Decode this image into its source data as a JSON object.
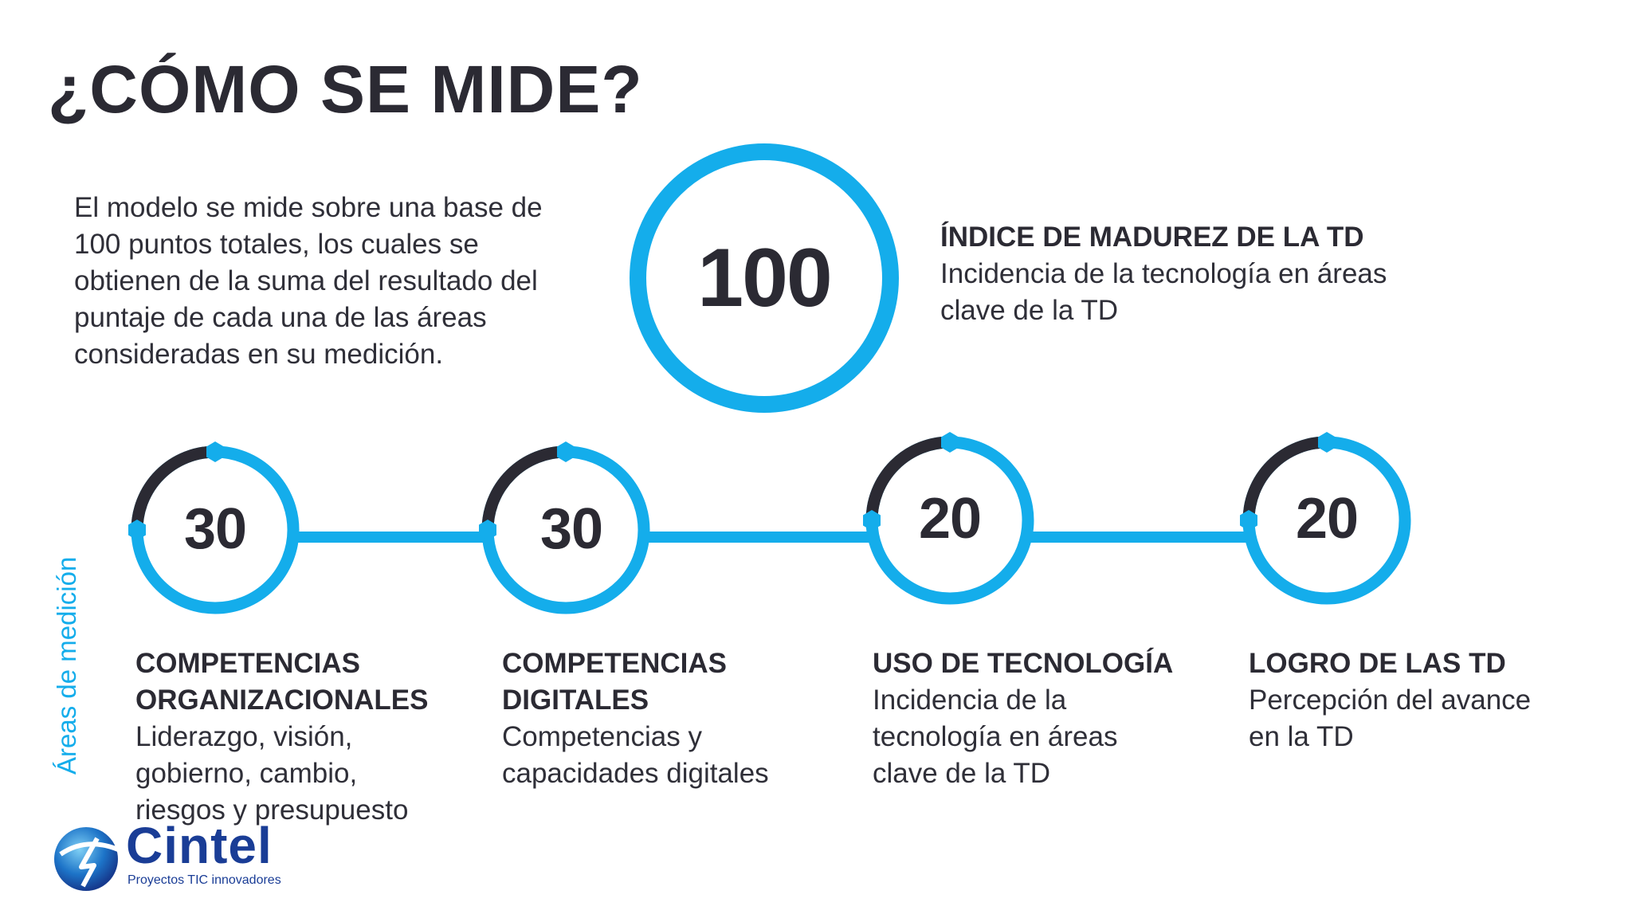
{
  "title": "¿CÓMO SE MIDE?",
  "intro_lines": [
    "El modelo se mide sobre una base de",
    "100 puntos totales, los cuales se",
    "obtienen de la suma del resultado del",
    "puntaje de cada una de las áreas",
    "consideradas en su medición."
  ],
  "total": {
    "value": "100",
    "heading": "ÍNDICE DE MADUREZ DE LA TD",
    "desc_lines": [
      "Incidencia de la tecnología en áreas",
      "clave de la TD"
    ]
  },
  "vertical_label": "Áreas de medición",
  "areas": [
    {
      "value": "30",
      "heading_lines": [
        "COMPETENCIAS",
        "ORGANIZACIONALES"
      ],
      "desc_lines": [
        "Liderazgo, visión,",
        "gobierno, cambio,",
        "riesgos y presupuesto"
      ]
    },
    {
      "value": "30",
      "heading_lines": [
        "COMPETENCIAS",
        "DIGITALES"
      ],
      "desc_lines": [
        "Competencias y",
        "capacidades digitales"
      ]
    },
    {
      "value": "20",
      "heading_lines": [
        "USO DE TECNOLOGÍA"
      ],
      "desc_lines": [
        "Incidencia de la",
        "tecnología en áreas",
        "clave de la TD"
      ]
    },
    {
      "value": "20",
      "heading_lines": [
        "LOGRO DE LAS TD"
      ],
      "desc_lines": [
        "Percepción del avance",
        "en la TD"
      ]
    }
  ],
  "logo": {
    "name": "Cintel",
    "tagline": "Proyectos TIC innovadores"
  },
  "colors": {
    "accent": "#14adeb",
    "dark": "#2b2a33",
    "brand": "#1a3d96"
  }
}
